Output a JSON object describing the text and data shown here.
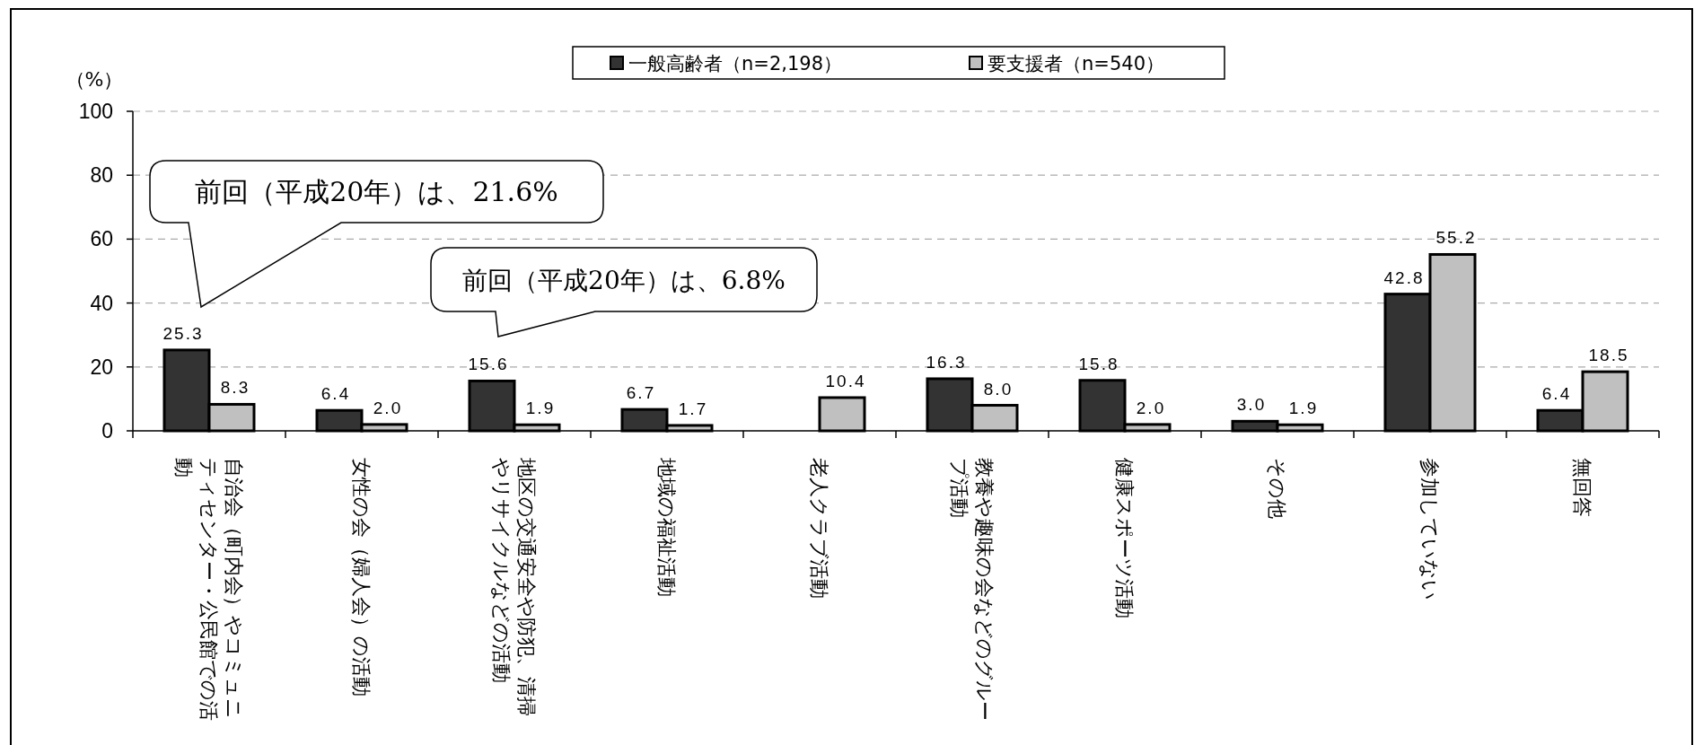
{
  "chart_data": {
    "type": "bar",
    "ylabel": "（%）",
    "categories": [
      "自治会（町内会）やコミュニティセンター・公民館での活動",
      "女性の会（婦人会）の活動",
      "地区の交通安全や防犯、清掃やリサイクルなどの活動",
      "地域の福祉活動",
      "老人クラブ活動",
      "教養や趣味の会などのグループ活動",
      "健康スポーツ活動",
      "その他",
      "参加していない",
      "無回答"
    ],
    "series": [
      {
        "name": "一般高齢者（n=2,198）",
        "color": "#333333",
        "values": [
          25.3,
          6.4,
          15.6,
          6.7,
          null,
          16.3,
          15.8,
          3.0,
          42.8,
          6.4
        ],
        "value_labels": [
          "25.3",
          "6.4",
          "15.6",
          "6.7",
          null,
          "16.3",
          "15.8",
          "3.0",
          "42.8",
          "6.4"
        ]
      },
      {
        "name": "要支援者（n=540）",
        "color": "#c0c0c0",
        "values": [
          8.3,
          2.0,
          1.9,
          1.7,
          10.4,
          8.0,
          2.0,
          1.9,
          55.2,
          18.5
        ],
        "value_labels": [
          "8.3",
          "2.0",
          "1.9",
          "1.7",
          "10.4",
          "8.0",
          "2.0",
          "1.9",
          "55.2",
          "18.5"
        ]
      }
    ],
    "ylim": [
      0,
      100
    ],
    "yticks": [
      0,
      20,
      40,
      60,
      80,
      100
    ],
    "grid": "y",
    "legend": "top",
    "annotations": [
      "前回（平成20年）は、21.6%",
      "前回（平成20年）は、6.8%"
    ]
  }
}
